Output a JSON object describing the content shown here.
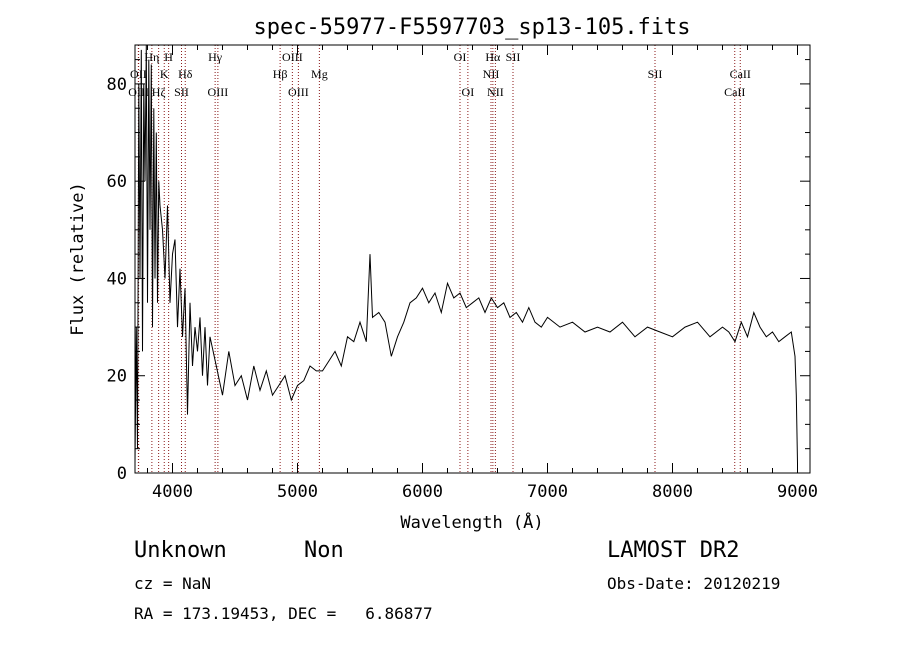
{
  "chart_data": {
    "type": "line",
    "title": "spec-55977-F5597703_sp13-105.fits",
    "xlabel": "Wavelength (Å)",
    "ylabel": "Flux (relative)",
    "xlim": [
      3700,
      9100
    ],
    "ylim": [
      0,
      88
    ],
    "xticks": [
      4000,
      5000,
      6000,
      7000,
      8000,
      9000
    ],
    "yticks": [
      0,
      20,
      40,
      60,
      80
    ],
    "series": [
      {
        "x": [
          3700,
          3710,
          3720,
          3730,
          3740,
          3750,
          3760,
          3770,
          3780,
          3790,
          3800,
          3810,
          3820,
          3830,
          3840,
          3850,
          3860,
          3870,
          3880,
          3890,
          3900,
          3920,
          3940,
          3960,
          3980,
          4000,
          4020,
          4040,
          4060,
          4080,
          4100,
          4120,
          4140,
          4160,
          4180,
          4200,
          4220,
          4240,
          4260,
          4280,
          4300,
          4350,
          4400,
          4450,
          4500,
          4550,
          4600,
          4650,
          4700,
          4750,
          4800,
          4850,
          4900,
          4950,
          5000,
          5050,
          5100,
          5150,
          5200,
          5250,
          5300,
          5350,
          5400,
          5450,
          5500,
          5550,
          5580,
          5600,
          5650,
          5700,
          5750,
          5800,
          5850,
          5900,
          5950,
          6000,
          6050,
          6100,
          6150,
          6200,
          6250,
          6300,
          6350,
          6400,
          6450,
          6500,
          6550,
          6600,
          6650,
          6700,
          6750,
          6800,
          6850,
          6900,
          6950,
          7000,
          7100,
          7200,
          7300,
          7400,
          7500,
          7600,
          7700,
          7800,
          7900,
          8000,
          8100,
          8200,
          8300,
          8400,
          8450,
          8500,
          8550,
          8600,
          8650,
          8700,
          8750,
          8800,
          8850,
          8900,
          8950,
          8980,
          8990,
          9000
        ],
        "values": [
          2,
          30,
          5,
          80,
          40,
          87,
          25,
          80,
          60,
          88,
          35,
          85,
          50,
          84,
          30,
          75,
          40,
          70,
          35,
          60,
          55,
          50,
          40,
          55,
          35,
          45,
          48,
          30,
          42,
          28,
          38,
          12,
          35,
          22,
          30,
          25,
          32,
          20,
          30,
          18,
          28,
          22,
          16,
          25,
          18,
          20,
          15,
          22,
          17,
          21,
          16,
          18,
          20,
          15,
          18,
          19,
          22,
          21,
          21,
          23,
          25,
          22,
          28,
          27,
          31,
          27,
          45,
          32,
          33,
          31,
          24,
          28,
          31,
          35,
          36,
          38,
          35,
          37,
          33,
          39,
          36,
          37,
          34,
          35,
          36,
          33,
          36,
          34,
          35,
          32,
          33,
          31,
          34,
          31,
          30,
          32,
          30,
          31,
          29,
          30,
          29,
          31,
          28,
          30,
          29,
          28,
          30,
          31,
          28,
          30,
          29,
          27,
          31,
          28,
          33,
          30,
          28,
          29,
          27,
          28,
          29,
          24,
          16,
          2
        ]
      }
    ],
    "lines": [
      {
        "label": "OII",
        "x": 3727,
        "row": 3
      },
      {
        "label": "OIII",
        "x": 3729,
        "row": 4
      },
      {
        "label": "Hη",
        "x": 3835,
        "row": 2
      },
      {
        "label": "Hζ",
        "x": 3889,
        "row": 4
      },
      {
        "label": "K",
        "x": 3934,
        "row": 3
      },
      {
        "label": "H",
        "x": 3969,
        "row": 1
      },
      {
        "label": "SII",
        "x": 4072,
        "row": 4
      },
      {
        "label": "Hδ",
        "x": 4102,
        "row": 3
      },
      {
        "label": "Hγ",
        "x": 4341,
        "row": 1
      },
      {
        "label": "OIII",
        "x": 4363,
        "row": 4
      },
      {
        "label": "Hβ",
        "x": 4861,
        "row": 3
      },
      {
        "label": "OIII",
        "x": 4959,
        "row": 1
      },
      {
        "label": "OIII",
        "x": 5007,
        "row": 4
      },
      {
        "label": "Mg",
        "x": 5175,
        "row": 3
      },
      {
        "label": "OI",
        "x": 6300,
        "row": 1
      },
      {
        "label": "OI",
        "x": 6363,
        "row": 4
      },
      {
        "label": "NII",
        "x": 6548,
        "row": 3
      },
      {
        "label": "Hα",
        "x": 6563,
        "row": 1
      },
      {
        "label": "NII",
        "x": 6583,
        "row": 4
      },
      {
        "label": "SII",
        "x": 6724,
        "row": 1
      },
      {
        "label": "SII",
        "x": 7860,
        "row": 3
      },
      {
        "label": "CaII",
        "x": 8498,
        "row": 4
      },
      {
        "label": "CaII",
        "x": 8542,
        "row": 3
      }
    ],
    "line_color": "#8b1a1a"
  },
  "info": {
    "class": "Unknown",
    "subclass": "Non",
    "cz": "cz = NaN",
    "survey": "LAMOST DR2",
    "obs_date": "Obs-Date: 20120219",
    "radec": "RA = 173.19453, DEC =   6.86877"
  }
}
